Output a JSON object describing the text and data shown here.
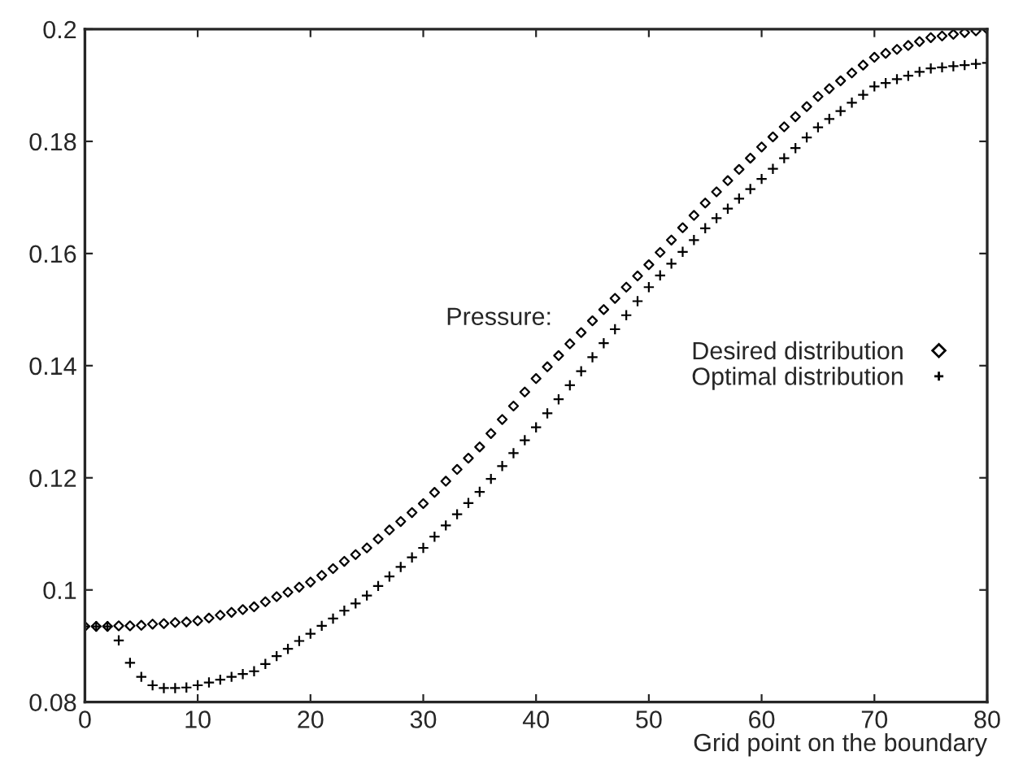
{
  "chart_data": {
    "type": "scatter",
    "xlabel": "Grid point on the boundary",
    "legend_title": "Pressure:",
    "legend": "right",
    "x": [
      0,
      1,
      2,
      3,
      4,
      5,
      6,
      7,
      8,
      9,
      10,
      11,
      12,
      13,
      14,
      15,
      16,
      17,
      18,
      19,
      20,
      21,
      22,
      23,
      24,
      25,
      26,
      27,
      28,
      29,
      30,
      31,
      32,
      33,
      34,
      35,
      36,
      37,
      38,
      39,
      40,
      41,
      42,
      43,
      44,
      45,
      46,
      47,
      48,
      49,
      50,
      51,
      52,
      53,
      54,
      55,
      56,
      57,
      58,
      59,
      60,
      61,
      62,
      63,
      64,
      65,
      66,
      67,
      68,
      69,
      70,
      71,
      72,
      73,
      74,
      75,
      76,
      77,
      78,
      79,
      80
    ],
    "xlim": [
      0,
      80
    ],
    "xticks": [
      0,
      10,
      20,
      30,
      40,
      50,
      60,
      70,
      80
    ],
    "ylim": [
      0.08,
      0.2
    ],
    "yticks": [
      0.08,
      0.1,
      0.12,
      0.14,
      0.16,
      0.18,
      0.2
    ],
    "grid": false,
    "series": [
      {
        "name": "Desired distribution",
        "color": "#000000",
        "marker": "diamond",
        "values": [
          0.0935,
          0.0935,
          0.0935,
          0.0936,
          0.0936,
          0.0937,
          0.0939,
          0.094,
          0.0942,
          0.0943,
          0.0945,
          0.095,
          0.0955,
          0.096,
          0.0965,
          0.097,
          0.0979,
          0.0988,
          0.0996,
          0.1005,
          0.1014,
          0.1026,
          0.1038,
          0.1051,
          0.1063,
          0.1075,
          0.1091,
          0.1107,
          0.1122,
          0.1138,
          0.1154,
          0.1174,
          0.1194,
          0.1215,
          0.1235,
          0.1255,
          0.1279,
          0.1304,
          0.1328,
          0.1353,
          0.1377,
          0.1398,
          0.1418,
          0.1439,
          0.1459,
          0.148,
          0.15,
          0.152,
          0.154,
          0.156,
          0.158,
          0.1602,
          0.1624,
          0.1646,
          0.1668,
          0.169,
          0.171,
          0.173,
          0.175,
          0.177,
          0.179,
          0.1808,
          0.1826,
          0.1844,
          0.1862,
          0.188,
          0.1894,
          0.1908,
          0.1922,
          0.1936,
          0.195,
          0.1957,
          0.1964,
          0.1971,
          0.1978,
          0.1985,
          0.1988,
          0.1991,
          0.1994,
          0.1997,
          0.2
        ]
      },
      {
        "name": "Optimal distribution",
        "color": "#000000",
        "marker": "cross",
        "values": [
          0.0935,
          0.0935,
          0.0935,
          0.091,
          0.087,
          0.0845,
          0.083,
          0.0825,
          0.0825,
          0.0826,
          0.083,
          0.0835,
          0.084,
          0.0845,
          0.085,
          0.0855,
          0.0868,
          0.0882,
          0.0895,
          0.0909,
          0.0922,
          0.0936,
          0.0949,
          0.0963,
          0.0976,
          0.099,
          0.1007,
          0.1024,
          0.1041,
          0.1058,
          0.1075,
          0.1095,
          0.1115,
          0.1135,
          0.1155,
          0.1175,
          0.1198,
          0.1221,
          0.1244,
          0.1267,
          0.129,
          0.1315,
          0.134,
          0.1365,
          0.139,
          0.1415,
          0.144,
          0.1465,
          0.149,
          0.1515,
          0.154,
          0.1561,
          0.1582,
          0.1603,
          0.1624,
          0.1645,
          0.1663,
          0.168,
          0.1698,
          0.1715,
          0.1733,
          0.1751,
          0.177,
          0.1788,
          0.1807,
          0.1825,
          0.184,
          0.1854,
          0.1869,
          0.1883,
          0.1898,
          0.1904,
          0.1911,
          0.1917,
          0.1924,
          0.193,
          0.1932,
          0.1934,
          0.1936,
          0.1938,
          0.194
        ]
      }
    ]
  }
}
